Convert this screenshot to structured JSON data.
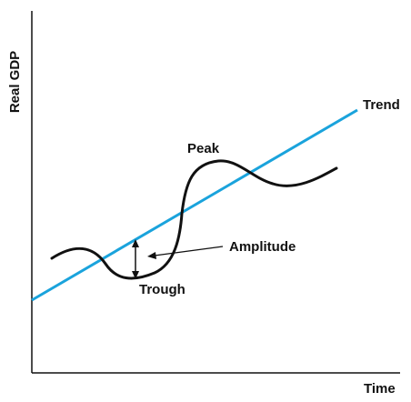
{
  "labels": {
    "y_axis": "Real GDP",
    "x_axis": "Time",
    "trend": "Trend",
    "peak": "Peak",
    "trough": "Trough",
    "amplitude": "Amplitude"
  },
  "colors": {
    "trend_line": "#1aa3dc",
    "cycle_curve": "#111111",
    "axes": "#111111"
  }
}
